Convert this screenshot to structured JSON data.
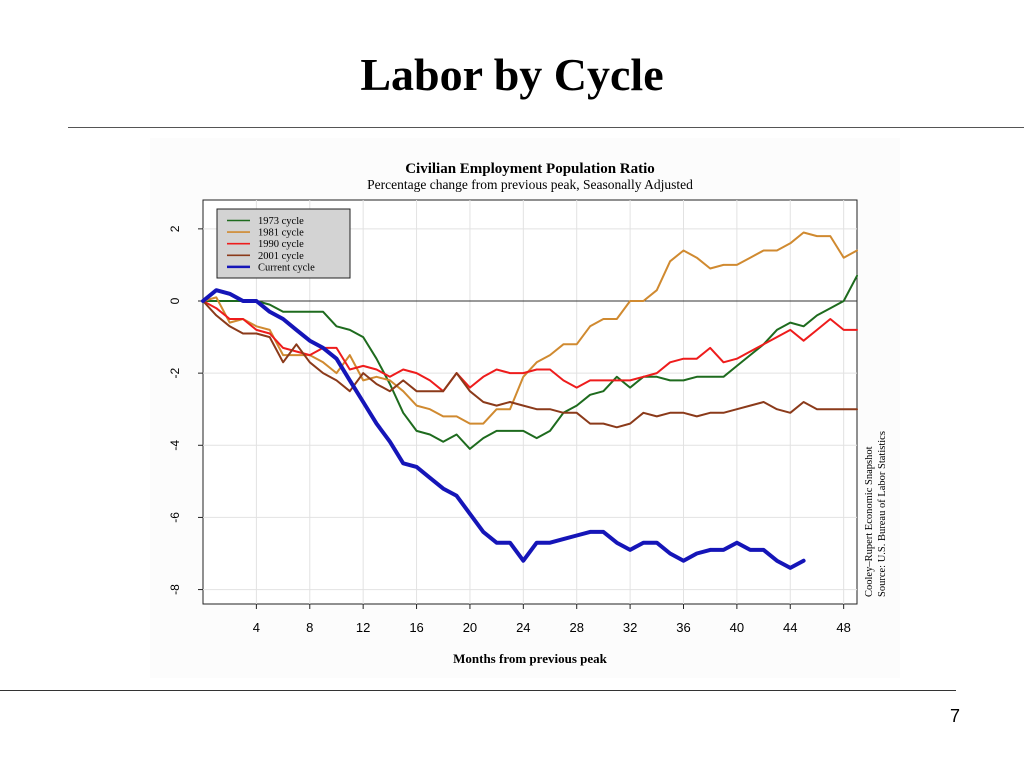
{
  "slide": {
    "title": "Labor by Cycle",
    "page_number": "7"
  },
  "chart_data": {
    "type": "line",
    "title": "Civilian Employment Population Ratio",
    "subtitle": "Percentage change from previous peak, Seasonally Adjusted",
    "xlabel": "Months from previous peak",
    "ylabel": "",
    "xlim": [
      0,
      49
    ],
    "ylim": [
      -8.4,
      2.8
    ],
    "xticks": [
      4,
      8,
      12,
      16,
      20,
      24,
      28,
      32,
      36,
      40,
      44,
      48
    ],
    "yticks": [
      2,
      0,
      -2,
      -4,
      -6,
      -8
    ],
    "grid": true,
    "zero_line": true,
    "legend_position": "top-left",
    "annotation": [
      "Cooley–Rupert Economic Snapshot",
      "Source: U.S. Bureau of Labor Statistics"
    ],
    "series": [
      {
        "name": "1973 cycle",
        "color": "#1e6b1e",
        "stroke_width": 2,
        "x": [
          0,
          1,
          2,
          3,
          4,
          5,
          6,
          7,
          8,
          9,
          10,
          11,
          12,
          13,
          14,
          15,
          16,
          17,
          18,
          19,
          20,
          21,
          22,
          23,
          24,
          25,
          26,
          27,
          28,
          29,
          30,
          31,
          32,
          33,
          34,
          35,
          36,
          37,
          38,
          39,
          40,
          41,
          42,
          43,
          44,
          45,
          46,
          47,
          48,
          49
        ],
        "values": [
          0,
          0,
          0,
          0,
          0,
          -0.1,
          -0.3,
          -0.3,
          -0.3,
          -0.3,
          -0.7,
          -0.8,
          -1.0,
          -1.6,
          -2.3,
          -3.1,
          -3.6,
          -3.7,
          -3.9,
          -3.7,
          -4.1,
          -3.8,
          -3.6,
          -3.6,
          -3.6,
          -3.8,
          -3.6,
          -3.1,
          -2.9,
          -2.6,
          -2.5,
          -2.1,
          -2.4,
          -2.1,
          -2.1,
          -2.2,
          -2.2,
          -2.1,
          -2.1,
          -2.1,
          -1.8,
          -1.5,
          -1.2,
          -0.8,
          -0.6,
          -0.7,
          -0.4,
          -0.2,
          0.0,
          0.7
        ]
      },
      {
        "name": "1981 cycle",
        "color": "#d08a30",
        "stroke_width": 2,
        "x": [
          0,
          1,
          2,
          3,
          4,
          5,
          6,
          7,
          8,
          9,
          10,
          11,
          12,
          13,
          14,
          15,
          16,
          17,
          18,
          19,
          20,
          21,
          22,
          23,
          24,
          25,
          26,
          27,
          28,
          29,
          30,
          31,
          32,
          33,
          34,
          35,
          36,
          37,
          38,
          39,
          40,
          41,
          42,
          43,
          44,
          45,
          46,
          47,
          48,
          49
        ],
        "values": [
          0,
          0.1,
          -0.6,
          -0.5,
          -0.7,
          -0.8,
          -1.5,
          -1.5,
          -1.5,
          -1.7,
          -2.0,
          -1.5,
          -2.2,
          -2.1,
          -2.2,
          -2.5,
          -2.9,
          -3.0,
          -3.2,
          -3.2,
          -3.4,
          -3.4,
          -3.0,
          -3.0,
          -2.1,
          -1.7,
          -1.5,
          -1.2,
          -1.2,
          -0.7,
          -0.5,
          -0.5,
          0.0,
          0.0,
          0.3,
          1.1,
          1.4,
          1.2,
          0.9,
          1.0,
          1.0,
          1.2,
          1.4,
          1.4,
          1.6,
          1.9,
          1.8,
          1.8,
          1.2,
          1.4
        ]
      },
      {
        "name": "1990 cycle",
        "color": "#ee1c1c",
        "stroke_width": 2,
        "x": [
          0,
          1,
          2,
          3,
          4,
          5,
          6,
          7,
          8,
          9,
          10,
          11,
          12,
          13,
          14,
          15,
          16,
          17,
          18,
          19,
          20,
          21,
          22,
          23,
          24,
          25,
          26,
          27,
          28,
          29,
          30,
          31,
          32,
          33,
          34,
          35,
          36,
          37,
          38,
          39,
          40,
          41,
          42,
          43,
          44,
          45,
          46,
          47,
          48,
          49
        ],
        "values": [
          0,
          -0.2,
          -0.5,
          -0.5,
          -0.8,
          -0.9,
          -1.3,
          -1.4,
          -1.5,
          -1.3,
          -1.3,
          -1.9,
          -1.8,
          -1.9,
          -2.1,
          -1.9,
          -2.0,
          -2.2,
          -2.5,
          -2.0,
          -2.4,
          -2.1,
          -1.9,
          -2.0,
          -2.0,
          -1.9,
          -1.9,
          -2.2,
          -2.4,
          -2.2,
          -2.2,
          -2.2,
          -2.2,
          -2.1,
          -2.0,
          -1.7,
          -1.6,
          -1.6,
          -1.3,
          -1.7,
          -1.6,
          -1.4,
          -1.2,
          -1.0,
          -0.8,
          -1.1,
          -0.8,
          -0.5,
          -0.8,
          -0.8
        ]
      },
      {
        "name": "2001 cycle",
        "color": "#8b3a1a",
        "stroke_width": 2,
        "x": [
          0,
          1,
          2,
          3,
          4,
          5,
          6,
          7,
          8,
          9,
          10,
          11,
          12,
          13,
          14,
          15,
          16,
          17,
          18,
          19,
          20,
          21,
          22,
          23,
          24,
          25,
          26,
          27,
          28,
          29,
          30,
          31,
          32,
          33,
          34,
          35,
          36,
          37,
          38,
          39,
          40,
          41,
          42,
          43,
          44,
          45,
          46,
          47,
          48,
          49
        ],
        "values": [
          0,
          -0.4,
          -0.7,
          -0.9,
          -0.9,
          -1.0,
          -1.7,
          -1.2,
          -1.7,
          -2.0,
          -2.2,
          -2.5,
          -2.0,
          -2.3,
          -2.5,
          -2.2,
          -2.5,
          -2.5,
          -2.5,
          -2.0,
          -2.5,
          -2.8,
          -2.9,
          -2.8,
          -2.9,
          -3.0,
          -3.0,
          -3.1,
          -3.1,
          -3.4,
          -3.4,
          -3.5,
          -3.4,
          -3.1,
          -3.2,
          -3.1,
          -3.1,
          -3.2,
          -3.1,
          -3.1,
          -3.0,
          -2.9,
          -2.8,
          -3.0,
          -3.1,
          -2.8,
          -3.0,
          -3.0,
          -3.0,
          -3.0
        ]
      },
      {
        "name": "Current cycle",
        "color": "#1515b8",
        "stroke_width": 4,
        "x": [
          0,
          1,
          2,
          3,
          4,
          5,
          6,
          7,
          8,
          9,
          10,
          11,
          12,
          13,
          14,
          15,
          16,
          17,
          18,
          19,
          20,
          21,
          22,
          23,
          24,
          25,
          26,
          27,
          28,
          29,
          30,
          31,
          32,
          33,
          34,
          35,
          36,
          37,
          38,
          39,
          40,
          41,
          42,
          43,
          44,
          45
        ],
        "values": [
          0,
          0.3,
          0.2,
          0.0,
          0.0,
          -0.3,
          -0.5,
          -0.8,
          -1.1,
          -1.3,
          -1.6,
          -2.2,
          -2.8,
          -3.4,
          -3.9,
          -4.5,
          -4.6,
          -4.9,
          -5.2,
          -5.4,
          -5.9,
          -6.4,
          -6.7,
          -6.7,
          -7.2,
          -6.7,
          -6.7,
          -6.6,
          -6.5,
          -6.4,
          -6.4,
          -6.7,
          -6.9,
          -6.7,
          -6.7,
          -7.0,
          -7.2,
          -7.0,
          -6.9,
          -6.9,
          -6.7,
          -6.9,
          -6.9,
          -7.2,
          -7.4,
          -7.2
        ]
      }
    ]
  }
}
